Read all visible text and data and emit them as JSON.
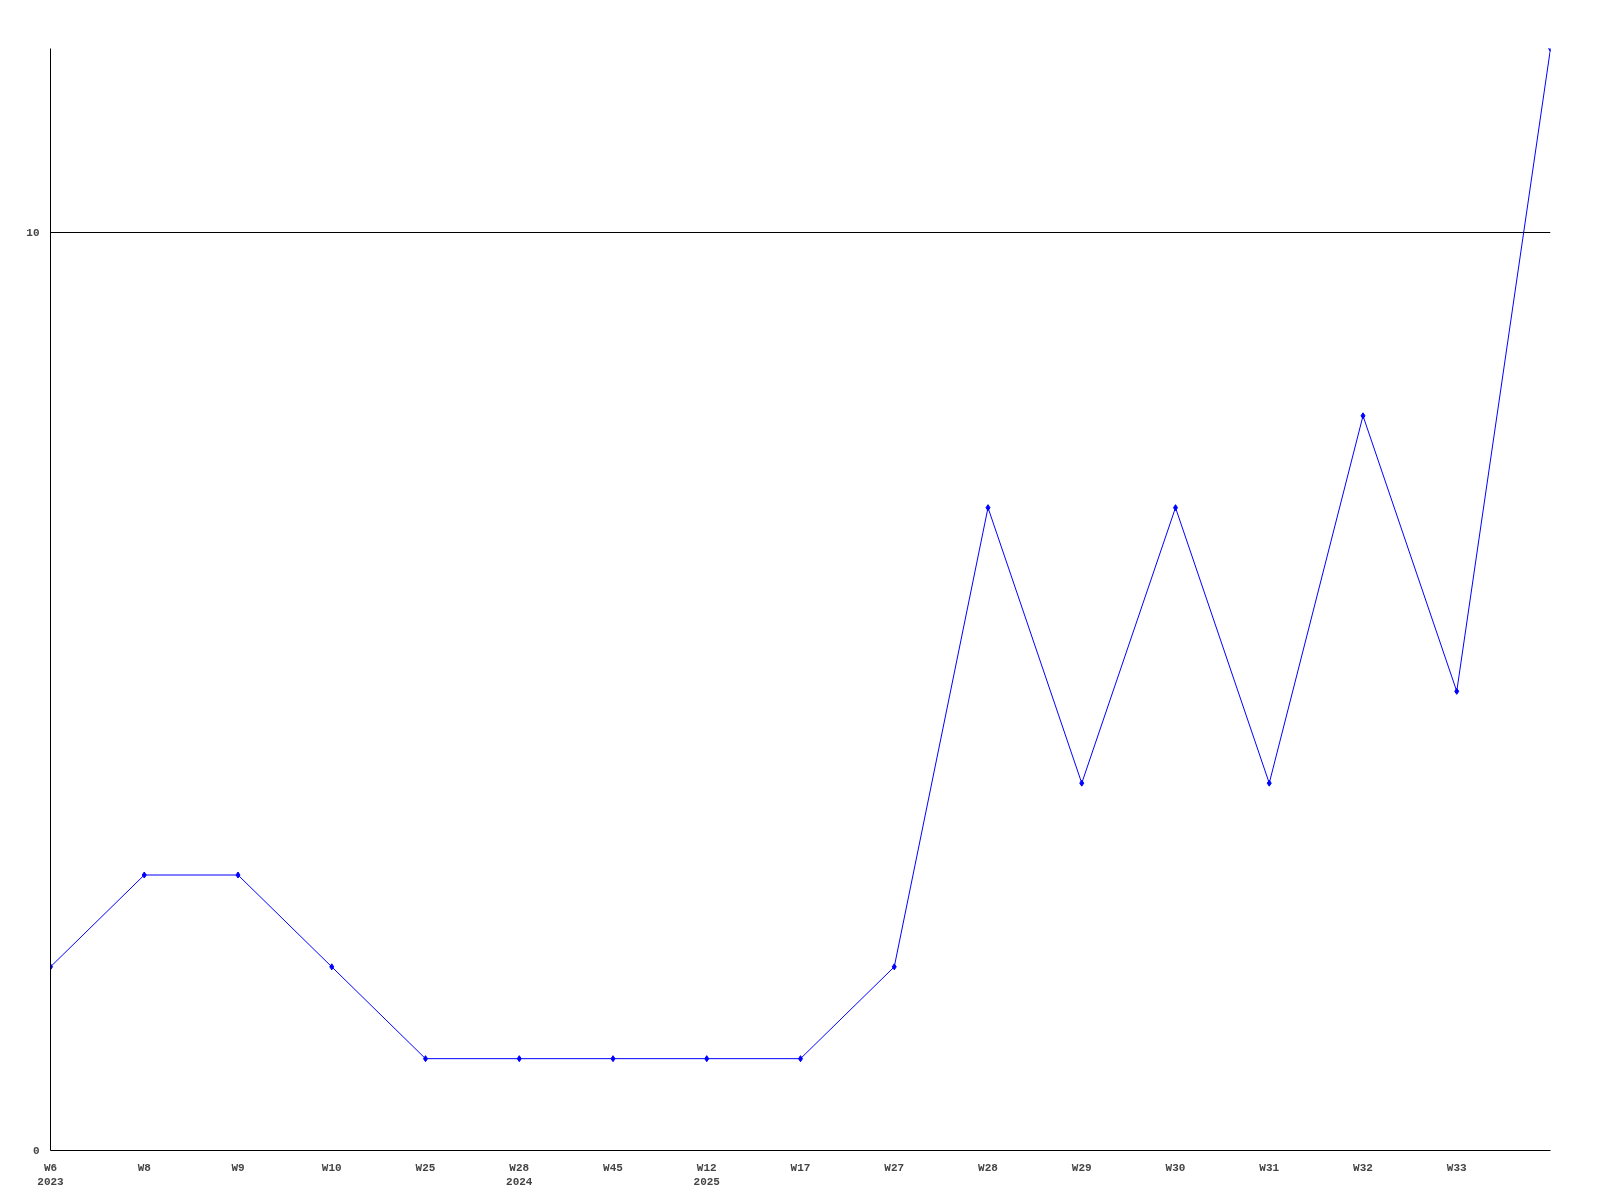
{
  "chart_data": {
    "type": "line",
    "categories": [
      "W6\n2023",
      "W8",
      "W9",
      "W10",
      "W25",
      "W28\n2024",
      "W45",
      "W12\n2025",
      "W17",
      "W27",
      "W28",
      "W29",
      "W30",
      "W31",
      "W32",
      "W33",
      null
    ],
    "series": [
      {
        "color": "#0000ff",
        "values": [
          2,
          3,
          3,
          2,
          1,
          1,
          1,
          1,
          1,
          2,
          7,
          4,
          7,
          4,
          8,
          5,
          12
        ]
      }
    ],
    "ylim": [
      0,
      12
    ],
    "yticks": [
      0,
      10
    ],
    "grid": "y",
    "marker": "diamond",
    "line_style": "solid"
  }
}
